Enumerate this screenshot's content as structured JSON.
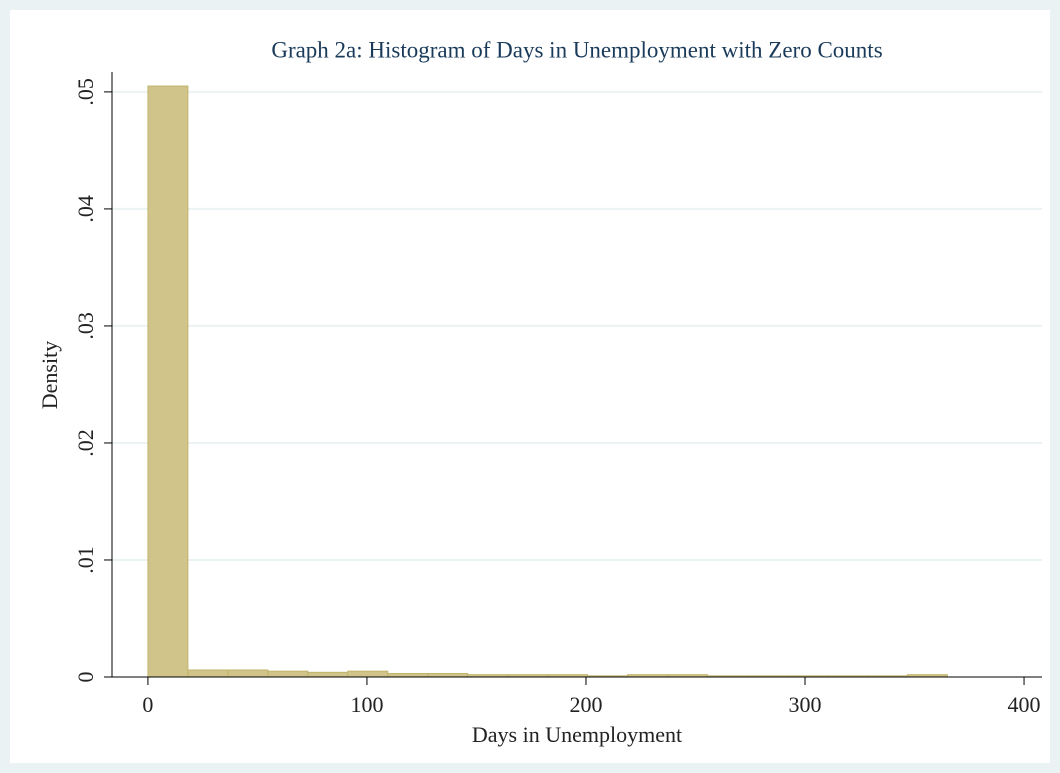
{
  "chart_data": {
    "type": "histogram",
    "title": "Graph 2a: Histogram of Days in Unemployment with Zero Counts",
    "xlabel": "Days in Unemployment",
    "ylabel": "Density",
    "bins": [
      0,
      18.25,
      36.5,
      54.75,
      73,
      91.25,
      109.5,
      127.75,
      146,
      164.25,
      182.5,
      200.75,
      219,
      237.25,
      255.5,
      273.75,
      292,
      310.25,
      328.5,
      346.75,
      365
    ],
    "counts": [
      0.0505,
      0.0006,
      0.0006,
      0.0005,
      0.0004,
      0.0005,
      0.0003,
      0.0003,
      0.0002,
      0.0002,
      0.0002,
      0.0001,
      0.0002,
      0.0002,
      0.0001,
      0.0001,
      0.0001,
      0.0001,
      0.0001,
      0.0002
    ],
    "color": "#d0c48a",
    "xlim": [
      -16.4,
      408.2
    ],
    "xticks": [
      0,
      100,
      200,
      300,
      400
    ],
    "ylim": [
      0,
      0.0517
    ],
    "yticks": [
      0,
      {
        "value": 0.01,
        "label": ".01"
      },
      {
        "value": 0.02,
        "label": ".02"
      },
      {
        "value": 0.03,
        "label": ".03"
      },
      {
        "value": 0.04,
        "label": ".04"
      },
      {
        "value": 0.05,
        "label": ".05"
      }
    ],
    "grid": true
  }
}
